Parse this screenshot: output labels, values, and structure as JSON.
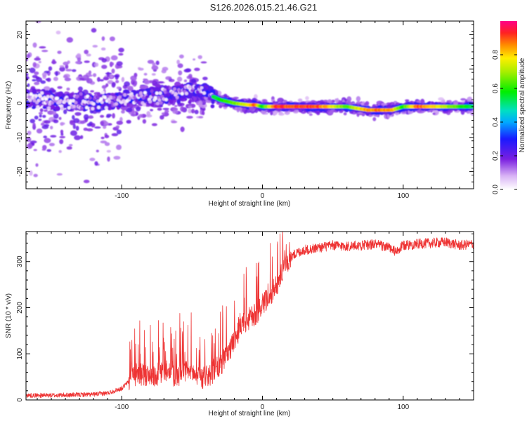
{
  "title": "S126.2026.015.21.46.G21",
  "chart_data": [
    {
      "type": "heatmap",
      "name": "spectrogram",
      "xlabel": "Height of straight line (km)",
      "ylabel": "Frequency (Hz)",
      "xlim": [
        -168,
        150
      ],
      "ylim": [
        -25,
        24
      ],
      "xticks": [
        -100,
        0,
        100
      ],
      "xtick_labels": [
        "-100",
        "0",
        "100"
      ],
      "yticks": [
        -20,
        -10,
        0,
        10,
        20
      ],
      "ytick_labels": [
        "-20",
        "-10",
        "0",
        "10",
        "20"
      ],
      "colorbar": {
        "label": "Normalized spectral amplitude",
        "range": [
          0,
          1
        ],
        "ticks": [
          0.0,
          0.2,
          0.4,
          0.6,
          0.8
        ],
        "tick_labels": [
          "0.0",
          "0.2",
          "0.4",
          "0.6",
          "0.8"
        ]
      },
      "dominant_frequency_trace": {
        "x": [
          -168,
          -140,
          -120,
          -100,
          -80,
          -60,
          -45,
          -38,
          -30,
          -20,
          -10,
          -5,
          0,
          10,
          40,
          60,
          75,
          85,
          92,
          100,
          110,
          150
        ],
        "y": [
          1.5,
          0.5,
          0,
          1,
          2,
          3,
          4.5,
          2.5,
          1,
          0,
          -0.5,
          -0.5,
          -1,
          -1,
          -1,
          -1,
          -2,
          -2,
          -2,
          -1,
          -1,
          -1
        ],
        "peak_amplitude": [
          0.2,
          0.25,
          0.3,
          0.3,
          0.35,
          0.4,
          0.45,
          0.55,
          0.6,
          0.7,
          0.8,
          0.95,
          0.6,
          0.95,
          0.95,
          0.65,
          0.9,
          0.9,
          0.9,
          0.6,
          0.95,
          0.55
        ]
      }
    },
    {
      "type": "line",
      "name": "snr",
      "xlabel": "Height of straight line (km)",
      "ylabel": "SNR (10 * v/v)",
      "xlim": [
        -168,
        150
      ],
      "ylim": [
        0,
        365
      ],
      "xticks": [
        -100,
        0,
        100
      ],
      "xtick_labels": [
        "-100",
        "0",
        "100"
      ],
      "yticks": [
        0,
        100,
        200,
        300
      ],
      "ytick_labels": [
        "0",
        "100",
        "200",
        "300"
      ],
      "series": [
        {
          "name": "SNR",
          "color": "#ee3333",
          "x": [
            -168,
            -150,
            -120,
            -110,
            -100,
            -95,
            -90,
            -85,
            -80,
            -75,
            -70,
            -65,
            -60,
            -55,
            -50,
            -45,
            -40,
            -35,
            -30,
            -25,
            -20,
            -15,
            -10,
            -5,
            0,
            5,
            10,
            15,
            20,
            25,
            30,
            40,
            50,
            60,
            70,
            80,
            90,
            95,
            100,
            110,
            120,
            130,
            140,
            150
          ],
          "y": [
            10,
            10,
            12,
            15,
            25,
            40,
            55,
            55,
            50,
            55,
            60,
            55,
            50,
            60,
            60,
            45,
            50,
            60,
            75,
            95,
            130,
            160,
            175,
            185,
            205,
            220,
            250,
            280,
            310,
            320,
            325,
            330,
            335,
            333,
            335,
            338,
            330,
            320,
            335,
            338,
            340,
            342,
            335,
            338
          ]
        }
      ]
    }
  ],
  "colors": {
    "snr_line": "#ee3333",
    "axis": "#000000"
  }
}
